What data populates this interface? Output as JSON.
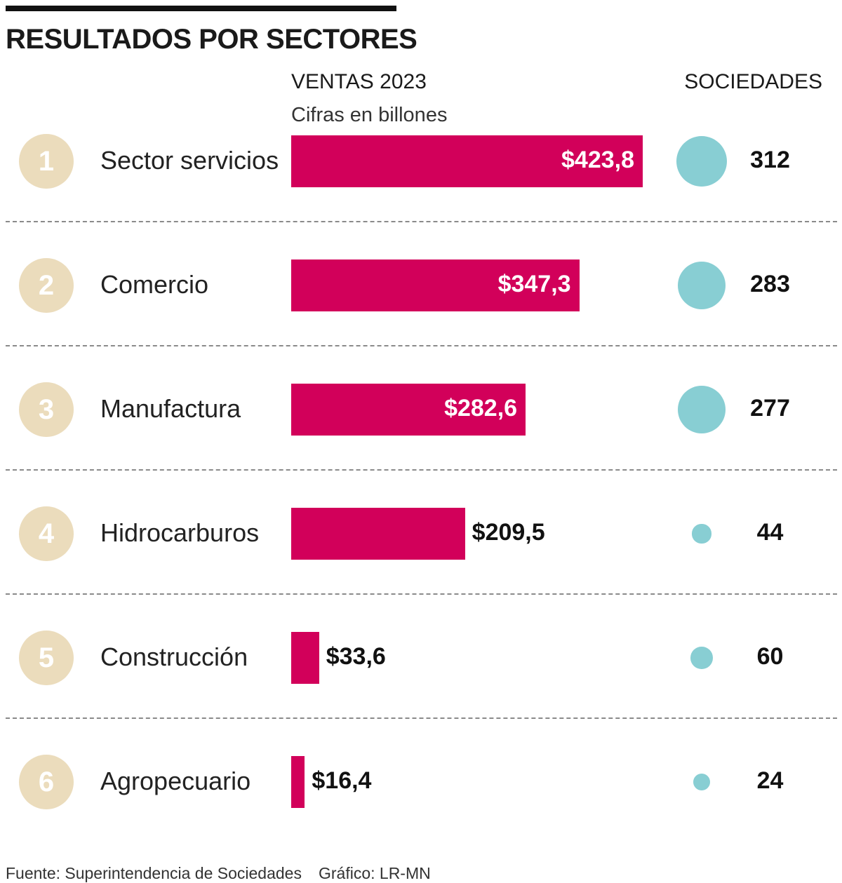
{
  "title": "RESULTADOS POR SECTORES",
  "columns": {
    "ventas_header": "VENTAS 2023",
    "ventas_sub": "Cifras en billones",
    "sociedades_header": "SOCIEDADES"
  },
  "footer": {
    "source": "Fuente: Superintendencia de Sociedades",
    "credit": "Gráfico: LR-MN"
  },
  "colors": {
    "bar": "#d2005a",
    "bubble": "#88ced3",
    "rank_circle": "#ebdcbc"
  },
  "chart_data": {
    "type": "bar",
    "orientation": "horizontal",
    "title": "RESULTADOS POR SECTORES",
    "categories": [
      "Sector servicios",
      "Comercio",
      "Manufactura",
      "Hidrocarburos",
      "Construcción",
      "Agropecuario"
    ],
    "ranks": [
      "1",
      "2",
      "3",
      "4",
      "5",
      "6"
    ],
    "series": [
      {
        "name": "VENTAS 2023",
        "values": [
          423.8,
          347.3,
          282.6,
          209.5,
          33.6,
          16.4
        ],
        "labels": [
          "$423,8",
          "$347,3",
          "$282,6",
          "$209,5",
          "$33,6",
          "$16,4"
        ]
      },
      {
        "name": "SOCIEDADES",
        "values": [
          312,
          283,
          277,
          44,
          60,
          24
        ],
        "labels": [
          "312",
          "283",
          "277",
          "44",
          "60",
          "24"
        ]
      }
    ],
    "xlim": [
      0,
      423.8
    ]
  }
}
